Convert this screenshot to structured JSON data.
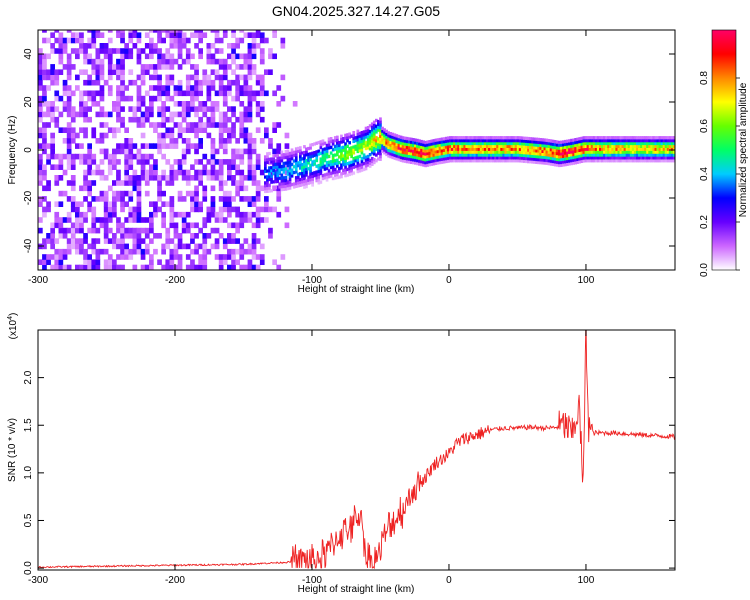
{
  "title": "GN04.2025.327.14.27.G05",
  "chart_data": [
    {
      "type": "heatmap",
      "panel": "spectrogram",
      "xlabel": "Height of straight line (km)",
      "ylabel": "Frequency (Hz)",
      "xlim": [
        -300,
        165
      ],
      "ylim": [
        -50,
        50
      ],
      "xticks": [
        -300,
        -200,
        -100,
        0,
        100
      ],
      "xtick_labels": [
        "-300",
        "-200",
        "-100",
        "0",
        "100"
      ],
      "yticks": [
        -40,
        -20,
        0,
        20,
        40
      ],
      "ytick_labels": [
        "-40",
        "-20",
        "0",
        "20",
        "40"
      ],
      "ridge": {
        "description": "dominant frequency track",
        "x": [
          -135,
          -120,
          -100,
          -90,
          -75,
          -60,
          -52,
          -45,
          -35,
          -25,
          -18,
          -10,
          0,
          20,
          50,
          70,
          80,
          90,
          98,
          110,
          130,
          165
        ],
        "y": [
          -10,
          -9,
          -6,
          -4,
          -2,
          1,
          5,
          2,
          0,
          -1,
          -2,
          -1,
          0,
          0,
          0,
          -1,
          -2,
          -1,
          0,
          0,
          0,
          0
        ],
        "amplitude": [
          0.35,
          0.4,
          0.45,
          0.5,
          0.6,
          0.65,
          0.75,
          0.8,
          0.9,
          0.95,
          0.95,
          0.9,
          0.85,
          0.8,
          0.8,
          0.85,
          0.95,
          0.95,
          0.9,
          0.8,
          0.75,
          0.75
        ]
      },
      "noise_region": {
        "x": [
          -300,
          -110
        ],
        "amplitude": [
          0.05,
          0.2
        ]
      },
      "colorbar": {
        "label": "Normalized spectral amplitude",
        "range": [
          0,
          1
        ],
        "ticks": [
          0.0,
          0.2,
          0.4,
          0.6,
          0.8
        ],
        "tick_labels": [
          "0.0",
          "0.2",
          "0.4",
          "0.6",
          "0.8"
        ],
        "colormap": [
          "#ffffff",
          "#cc66ff",
          "#6600ff",
          "#0000ff",
          "#00ccff",
          "#00ff66",
          "#66ff00",
          "#ffff00",
          "#ff8800",
          "#ff0000",
          "#ff0066"
        ]
      }
    },
    {
      "type": "line",
      "panel": "snr",
      "xlabel": "Height of straight line (km)",
      "ylabel": "SNR (10 * v/v)",
      "scale_label": "(x10",
      "scale_exponent": "4",
      "xlim": [
        -300,
        165
      ],
      "ylim": [
        -0.02,
        2.5
      ],
      "xticks": [
        -300,
        -200,
        -100,
        0,
        100
      ],
      "xtick_labels": [
        "-300",
        "-200",
        "-100",
        "0",
        "100"
      ],
      "yticks": [
        0.0,
        0.5,
        1.0,
        1.5,
        2.0
      ],
      "ytick_labels": [
        "0.0",
        "0.5",
        "1.0",
        "1.5",
        "2.0"
      ],
      "series": [
        {
          "name": "SNR",
          "color": "#ee2222",
          "x": [
            -300,
            -250,
            -200,
            -150,
            -120,
            -110,
            -100,
            -95,
            -90,
            -85,
            -80,
            -75,
            -70,
            -65,
            -60,
            -55,
            -50,
            -45,
            -40,
            -35,
            -30,
            -25,
            -20,
            -15,
            -10,
            -5,
            0,
            5,
            10,
            20,
            30,
            40,
            50,
            60,
            70,
            80,
            85,
            90,
            95,
            98,
            100,
            102,
            105,
            110,
            120,
            140,
            165
          ],
          "y": [
            0.01,
            0.02,
            0.03,
            0.04,
            0.06,
            0.07,
            0.08,
            0.1,
            0.15,
            0.25,
            0.35,
            0.4,
            0.45,
            0.6,
            0.1,
            0.05,
            0.2,
            0.4,
            0.5,
            0.6,
            0.7,
            0.85,
            0.9,
            1.0,
            1.1,
            1.15,
            1.2,
            1.3,
            1.35,
            1.4,
            1.45,
            1.47,
            1.47,
            1.48,
            1.47,
            1.48,
            1.5,
            1.4,
            1.7,
            0.85,
            2.5,
            1.5,
            1.42,
            1.42,
            1.42,
            1.4,
            1.38
          ]
        }
      ]
    }
  ]
}
